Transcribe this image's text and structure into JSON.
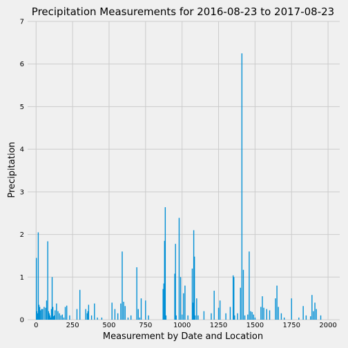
{
  "chart_data": {
    "type": "bar",
    "title": "Precipitation Measurements for 2016-08-23 to 2017-08-23",
    "xlabel": "Measurement by Date and Location",
    "ylabel": "Precipitation",
    "xlim": [
      -58,
      2080
    ],
    "ylim": [
      0,
      7
    ],
    "xticks": [
      0,
      250,
      500,
      750,
      1000,
      1250,
      1500,
      1750,
      2000
    ],
    "yticks": [
      0,
      1,
      2,
      3,
      4,
      5,
      6,
      7
    ],
    "grid": true,
    "bar_color": "#008fd5",
    "series": [
      {
        "x": [
          2,
          5,
          10,
          15,
          20,
          25,
          30,
          38,
          45,
          55,
          65,
          72,
          80,
          85,
          90,
          95,
          100,
          105,
          110,
          115,
          120,
          125,
          130,
          140,
          150,
          160,
          170,
          180,
          190,
          200,
          210,
          230,
          280,
          300,
          340,
          350,
          355,
          360,
          380,
          400,
          420,
          450,
          520,
          540,
          560,
          580,
          590,
          600,
          610,
          630,
          650,
          690,
          700,
          710,
          720,
          750,
          770,
          870,
          875,
          880,
          885,
          890,
          950,
          955,
          960,
          980,
          990,
          1000,
          1010,
          1020,
          1040,
          1070,
          1075,
          1080,
          1085,
          1090,
          1100,
          1110,
          1150,
          1200,
          1220,
          1250,
          1260,
          1300,
          1330,
          1350,
          1355,
          1360,
          1380,
          1400,
          1410,
          1420,
          1430,
          1450,
          1460,
          1470,
          1480,
          1490,
          1500,
          1540,
          1550,
          1560,
          1580,
          1600,
          1640,
          1650,
          1660,
          1680,
          1700,
          1750,
          1800,
          1830,
          1850,
          1880,
          1890,
          1900,
          1910,
          1920,
          1950
        ],
        "values": [
          1.45,
          0.2,
          0.15,
          2.05,
          0.35,
          0.3,
          0.22,
          0.25,
          0.25,
          0.3,
          0.28,
          0.45,
          1.84,
          0.2,
          0.15,
          0.1,
          0.05,
          0.25,
          1.0,
          0.3,
          0.08,
          0.1,
          0.22,
          0.38,
          0.2,
          0.15,
          0.1,
          0.12,
          0.05,
          0.3,
          0.33,
          0.1,
          0.25,
          0.7,
          0.25,
          0.15,
          0.2,
          0.35,
          0.1,
          0.38,
          0.05,
          0.05,
          0.4,
          0.25,
          0.15,
          0.38,
          1.6,
          0.42,
          0.32,
          0.05,
          0.1,
          1.23,
          0.25,
          0.05,
          0.5,
          0.45,
          0.1,
          0.72,
          0.85,
          1.85,
          2.64,
          0.1,
          1.08,
          1.78,
          0.1,
          2.39,
          1.0,
          0.12,
          0.62,
          0.8,
          0.1,
          1.2,
          0.4,
          2.1,
          1.48,
          0.1,
          0.5,
          0.1,
          0.2,
          0.15,
          0.68,
          0.28,
          0.45,
          0.15,
          0.3,
          1.04,
          1.0,
          0.1,
          0.15,
          0.75,
          6.25,
          1.17,
          0.1,
          0.12,
          1.6,
          0.2,
          0.18,
          0.12,
          0.05,
          0.3,
          0.55,
          0.28,
          0.25,
          0.22,
          0.5,
          0.8,
          0.3,
          0.15,
          0.05,
          0.5,
          0.05,
          0.32,
          0.1,
          0.08,
          0.58,
          0.2,
          0.4,
          0.25,
          0.1
        ]
      }
    ]
  }
}
